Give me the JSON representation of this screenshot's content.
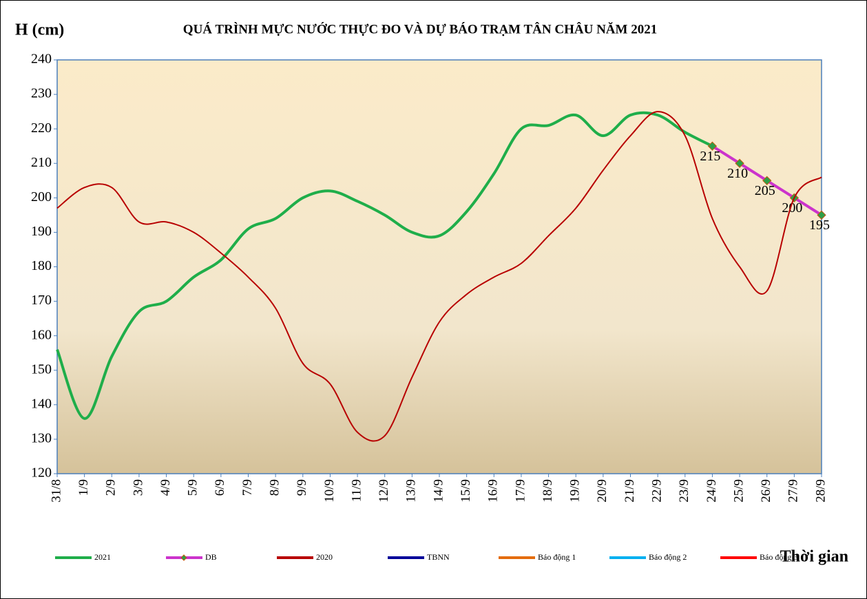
{
  "chart_data": {
    "type": "line",
    "title": "QUÁ TRÌNH MỰC NƯỚC THỰC ĐO VÀ DỰ BÁO TRẠM TÂN CHÂU NĂM 2021",
    "y_label": "H (cm)",
    "x_label": "Thời gian",
    "categories": [
      "31/8",
      "1/9",
      "2/9",
      "3/9",
      "4/9",
      "5/9",
      "6/9",
      "7/9",
      "8/9",
      "9/9",
      "10/9",
      "11/9",
      "12/9",
      "13/9",
      "14/9",
      "15/9",
      "16/9",
      "17/9",
      "18/9",
      "19/9",
      "20/9",
      "21/9",
      "22/9",
      "23/9",
      "24/9",
      "25/9",
      "26/9",
      "27/9",
      "28/9"
    ],
    "ylim": [
      120,
      240
    ],
    "yticks": [
      120,
      130,
      140,
      150,
      160,
      170,
      180,
      190,
      200,
      210,
      220,
      230,
      240
    ],
    "legend": "bottom",
    "series": [
      {
        "name": "2021",
        "color": "#1fae4a",
        "values": [
          156,
          136,
          154,
          167,
          170,
          177,
          182,
          191,
          194,
          200,
          202,
          199,
          195,
          190,
          189,
          196,
          207,
          220,
          221,
          224,
          218,
          224,
          224,
          219,
          215,
          null,
          null,
          null,
          null
        ]
      },
      {
        "name": "DB",
        "color": "#cc33cc",
        "marker": "diamond",
        "values": [
          null,
          null,
          null,
          null,
          null,
          null,
          null,
          null,
          null,
          null,
          null,
          null,
          null,
          null,
          null,
          null,
          null,
          null,
          null,
          null,
          null,
          null,
          null,
          null,
          215,
          210,
          205,
          200,
          195
        ],
        "show_value_labels": true
      },
      {
        "name": "2020",
        "color": "#b80000",
        "values": [
          197,
          203,
          203,
          193,
          193,
          190,
          184,
          177,
          168,
          152,
          146,
          132,
          131,
          148,
          164,
          172,
          177,
          181,
          189,
          197,
          208,
          218,
          225,
          218,
          194,
          180,
          173,
          200,
          206
        ]
      },
      {
        "name": "TBNN",
        "color": "#000099",
        "values": [
          null,
          null,
          null,
          null,
          null,
          null,
          null,
          null,
          null,
          null,
          null,
          null,
          null,
          null,
          null,
          null,
          null,
          null,
          null,
          null,
          null,
          null,
          null,
          null,
          null,
          null,
          null,
          null,
          null
        ]
      },
      {
        "name": "Báo động 1",
        "color": "#e46c0a",
        "values": [
          null,
          null,
          null,
          null,
          null,
          null,
          null,
          null,
          null,
          null,
          null,
          null,
          null,
          null,
          null,
          null,
          null,
          null,
          null,
          null,
          null,
          null,
          null,
          null,
          null,
          null,
          null,
          null,
          null
        ]
      },
      {
        "name": "Báo động 2",
        "color": "#00b0f0",
        "values": [
          null,
          null,
          null,
          null,
          null,
          null,
          null,
          null,
          null,
          null,
          null,
          null,
          null,
          null,
          null,
          null,
          null,
          null,
          null,
          null,
          null,
          null,
          null,
          null,
          null,
          null,
          null,
          null,
          null
        ]
      },
      {
        "name": "Báo động 3",
        "color": "#ff0000",
        "values": [
          null,
          null,
          null,
          null,
          null,
          null,
          null,
          null,
          null,
          null,
          null,
          null,
          null,
          null,
          null,
          null,
          null,
          null,
          null,
          null,
          null,
          null,
          null,
          null,
          null,
          null,
          null,
          null,
          null
        ]
      }
    ]
  }
}
